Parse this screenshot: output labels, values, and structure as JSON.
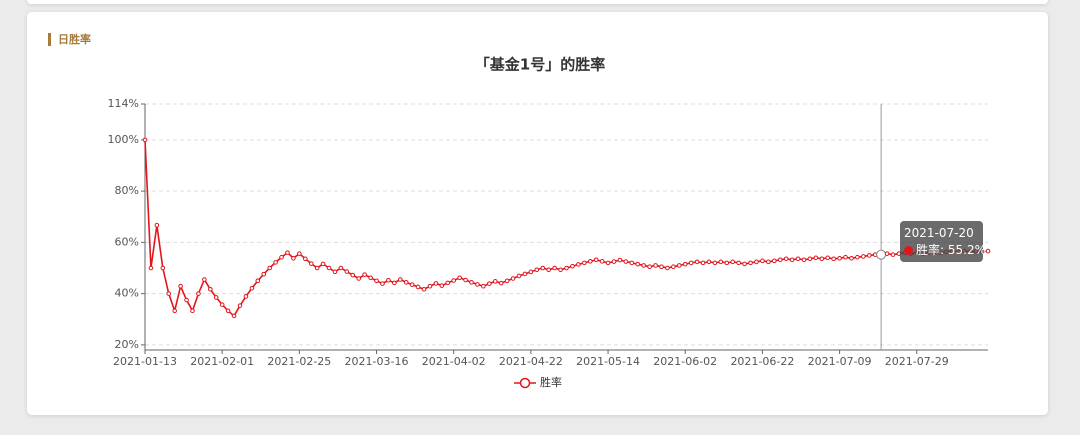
{
  "section_title": "日胜率",
  "chart_data": {
    "type": "line",
    "title": "「基金1号」的胜率",
    "categories": [
      "2021-01-13",
      null,
      null,
      null,
      null,
      null,
      null,
      null,
      null,
      null,
      null,
      null,
      null,
      "2021-02-01",
      null,
      null,
      null,
      null,
      null,
      null,
      null,
      null,
      null,
      null,
      null,
      null,
      "2021-02-25",
      null,
      null,
      null,
      null,
      null,
      null,
      null,
      null,
      null,
      null,
      null,
      null,
      "2021-03-16",
      null,
      null,
      null,
      null,
      null,
      null,
      null,
      null,
      null,
      null,
      null,
      null,
      "2021-04-02",
      null,
      null,
      null,
      null,
      null,
      null,
      null,
      null,
      null,
      null,
      null,
      null,
      "2021-04-22",
      null,
      null,
      null,
      null,
      null,
      null,
      null,
      null,
      null,
      null,
      null,
      null,
      "2021-05-14",
      null,
      null,
      null,
      null,
      null,
      null,
      null,
      null,
      null,
      null,
      null,
      null,
      "2021-06-02",
      null,
      null,
      null,
      null,
      null,
      null,
      null,
      null,
      null,
      null,
      null,
      null,
      "2021-06-22",
      null,
      null,
      null,
      null,
      null,
      null,
      null,
      null,
      null,
      null,
      null,
      null,
      "2021-07-09",
      null,
      null,
      null,
      null,
      null,
      null,
      "2021-07-20",
      null,
      null,
      null,
      null,
      null,
      "2021-07-29",
      null,
      null,
      null,
      null,
      null,
      null,
      null,
      null,
      null,
      null,
      null,
      null
    ],
    "series": [
      {
        "name": "胜率",
        "color": "#e3151c",
        "values": [
          100,
          50,
          66.7,
          50,
          40,
          33.3,
          42.9,
          37.5,
          33.3,
          40,
          45.5,
          41.7,
          38.5,
          35.7,
          33.3,
          31.3,
          35.3,
          38.9,
          42.1,
          45,
          47.6,
          50,
          52.2,
          54.2,
          56,
          53.8,
          55.6,
          53.6,
          51.7,
          50,
          51.6,
          50,
          48.5,
          50,
          48.6,
          47.2,
          45.9,
          47.4,
          46.2,
          45,
          43.9,
          45.2,
          44.2,
          45.5,
          44.4,
          43.5,
          42.6,
          41.7,
          42.9,
          44,
          43.1,
          44.2,
          45.1,
          46.2,
          45.3,
          44.4,
          43.6,
          42.9,
          43.9,
          44.8,
          44.1,
          45,
          45.9,
          46.9,
          47.7,
          48.5,
          49.3,
          50,
          49.3,
          50,
          49.3,
          50,
          50.7,
          51.4,
          52,
          52.6,
          53.2,
          52.6,
          52,
          52.5,
          53.1,
          52.5,
          52,
          51.5,
          51,
          50.5,
          51,
          50.5,
          50,
          50.5,
          51,
          51.5,
          52,
          52.4,
          52,
          52.4,
          52,
          52.4,
          52,
          52.4,
          52,
          51.6,
          52,
          52.4,
          52.8,
          52.4,
          52.8,
          53.2,
          53.6,
          53.2,
          53.6,
          53.2,
          53.6,
          54,
          53.6,
          54,
          53.6,
          53.8,
          54.2,
          53.8,
          54.2,
          54.5,
          54.9,
          55.2,
          55.2,
          55.6,
          55.2,
          55.6,
          55.9,
          55.6,
          56,
          55.6,
          56,
          56.3,
          56,
          56.3,
          56.6,
          56.3,
          56.6,
          56.3,
          56.6,
          56.3,
          56.6
        ]
      }
    ],
    "ylim": [
      18,
      114
    ],
    "yticks": [
      {
        "value": 20,
        "label": "20%"
      },
      {
        "value": 40,
        "label": "40%"
      },
      {
        "value": 60,
        "label": "60%"
      },
      {
        "value": 80,
        "label": "80%"
      },
      {
        "value": 100,
        "label": "100%"
      },
      {
        "value": 114,
        "label": "114%"
      }
    ],
    "grid": true,
    "legend": "bottom",
    "tooltip": "胜率: 55.2%"
  }
}
